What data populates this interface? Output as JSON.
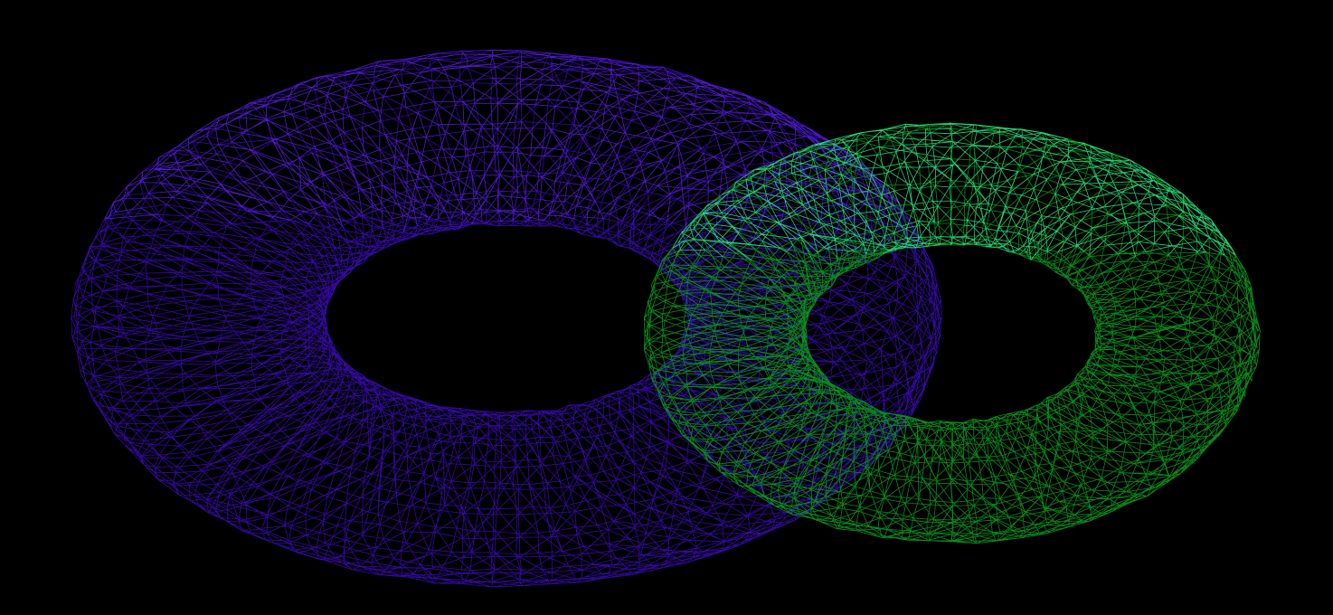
{
  "scene": {
    "background_color": "#000000",
    "render_style": "wireframe",
    "objects": [
      {
        "name": "purple-torus",
        "shape": "torus",
        "wire_color": "#3a0ab0",
        "highlight_color": "#5a1ee6"
      },
      {
        "name": "green-torus",
        "shape": "torus",
        "wire_color": "#0a9a1e",
        "highlight_color": "#2ef08a"
      }
    ]
  }
}
